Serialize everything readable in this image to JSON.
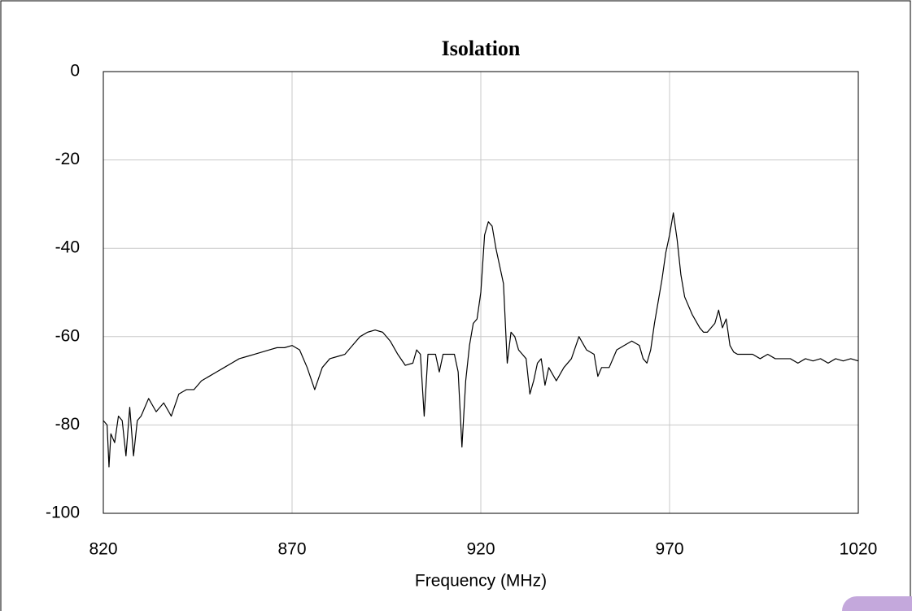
{
  "chart_data": {
    "type": "line",
    "title": "Isolation",
    "x_label": "Frequency (MHz)",
    "x": [
      820,
      821,
      821.5,
      822,
      823,
      824,
      825,
      826,
      827,
      828,
      829,
      830,
      832,
      834,
      836,
      838,
      840,
      842,
      844,
      846,
      848,
      850,
      852,
      854,
      856,
      858,
      860,
      862,
      864,
      866,
      868,
      870,
      872,
      874,
      876,
      878,
      880,
      882,
      884,
      886,
      888,
      890,
      892,
      894,
      896,
      898,
      900,
      902,
      903,
      904,
      905,
      906,
      908,
      909,
      910,
      912,
      913,
      914,
      915,
      916,
      917,
      918,
      919,
      920,
      921,
      922,
      923,
      924,
      925,
      926,
      927,
      928,
      929,
      930,
      931,
      932,
      933,
      934,
      935,
      936,
      937,
      938,
      940,
      942,
      944,
      946,
      948,
      950,
      951,
      952,
      954,
      956,
      958,
      960,
      962,
      963,
      964,
      965,
      966,
      967,
      968,
      969,
      970,
      971,
      972,
      973,
      974,
      976,
      978,
      979,
      980,
      982,
      983,
      984,
      985,
      986,
      987,
      988,
      990,
      992,
      994,
      996,
      998,
      1000,
      1002,
      1004,
      1006,
      1008,
      1010,
      1012,
      1014,
      1016,
      1018,
      1020
    ],
    "series": [
      {
        "name": "Isolation",
        "color": "#000000",
        "values": [
          -79,
          -80,
          -89.5,
          -82,
          -84,
          -78,
          -79,
          -87,
          -76,
          -87,
          -79,
          -78,
          -74,
          -77,
          -75,
          -78,
          -73,
          -72,
          -72,
          -70,
          -69,
          -68,
          -67,
          -66,
          -65,
          -64.5,
          -64,
          -63.5,
          -63,
          -62.5,
          -62.5,
          -62,
          -63,
          -67,
          -72,
          -67,
          -65,
          -64.5,
          -64,
          -62,
          -60,
          -59,
          -58.5,
          -59,
          -61,
          -64,
          -66.5,
          -66,
          -63,
          -64,
          -78,
          -64,
          -64,
          -68,
          -64,
          -64,
          -64,
          -68,
          -85,
          -70,
          -62,
          -57,
          -56,
          -50,
          -37,
          -34,
          -35,
          -40,
          -44,
          -48,
          -66,
          -59,
          -60,
          -63,
          -64,
          -65,
          -73,
          -70,
          -66,
          -65,
          -71,
          -67,
          -70,
          -67,
          -65,
          -60,
          -63,
          -64,
          -69,
          -67,
          -67,
          -63,
          -62,
          -61,
          -62,
          -65,
          -66,
          -63,
          -57,
          -52,
          -47,
          -41,
          -37,
          -32,
          -38,
          -46,
          -51,
          -55,
          -58,
          -59,
          -59,
          -57,
          -54,
          -58,
          -56,
          -62,
          -63.5,
          -64,
          -64,
          -64,
          -65,
          -64,
          -65,
          -65,
          -65,
          -66,
          -65,
          -65.5,
          -65,
          -66,
          -65,
          -65.5,
          -65,
          -65.5
        ]
      }
    ],
    "xlim": [
      820,
      1020
    ],
    "xticks": [
      820,
      870,
      920,
      970,
      1020
    ],
    "ylim": [
      -100,
      0
    ],
    "yticks": [
      0,
      -20,
      -40,
      -60,
      -80,
      -100
    ],
    "grid": true
  }
}
